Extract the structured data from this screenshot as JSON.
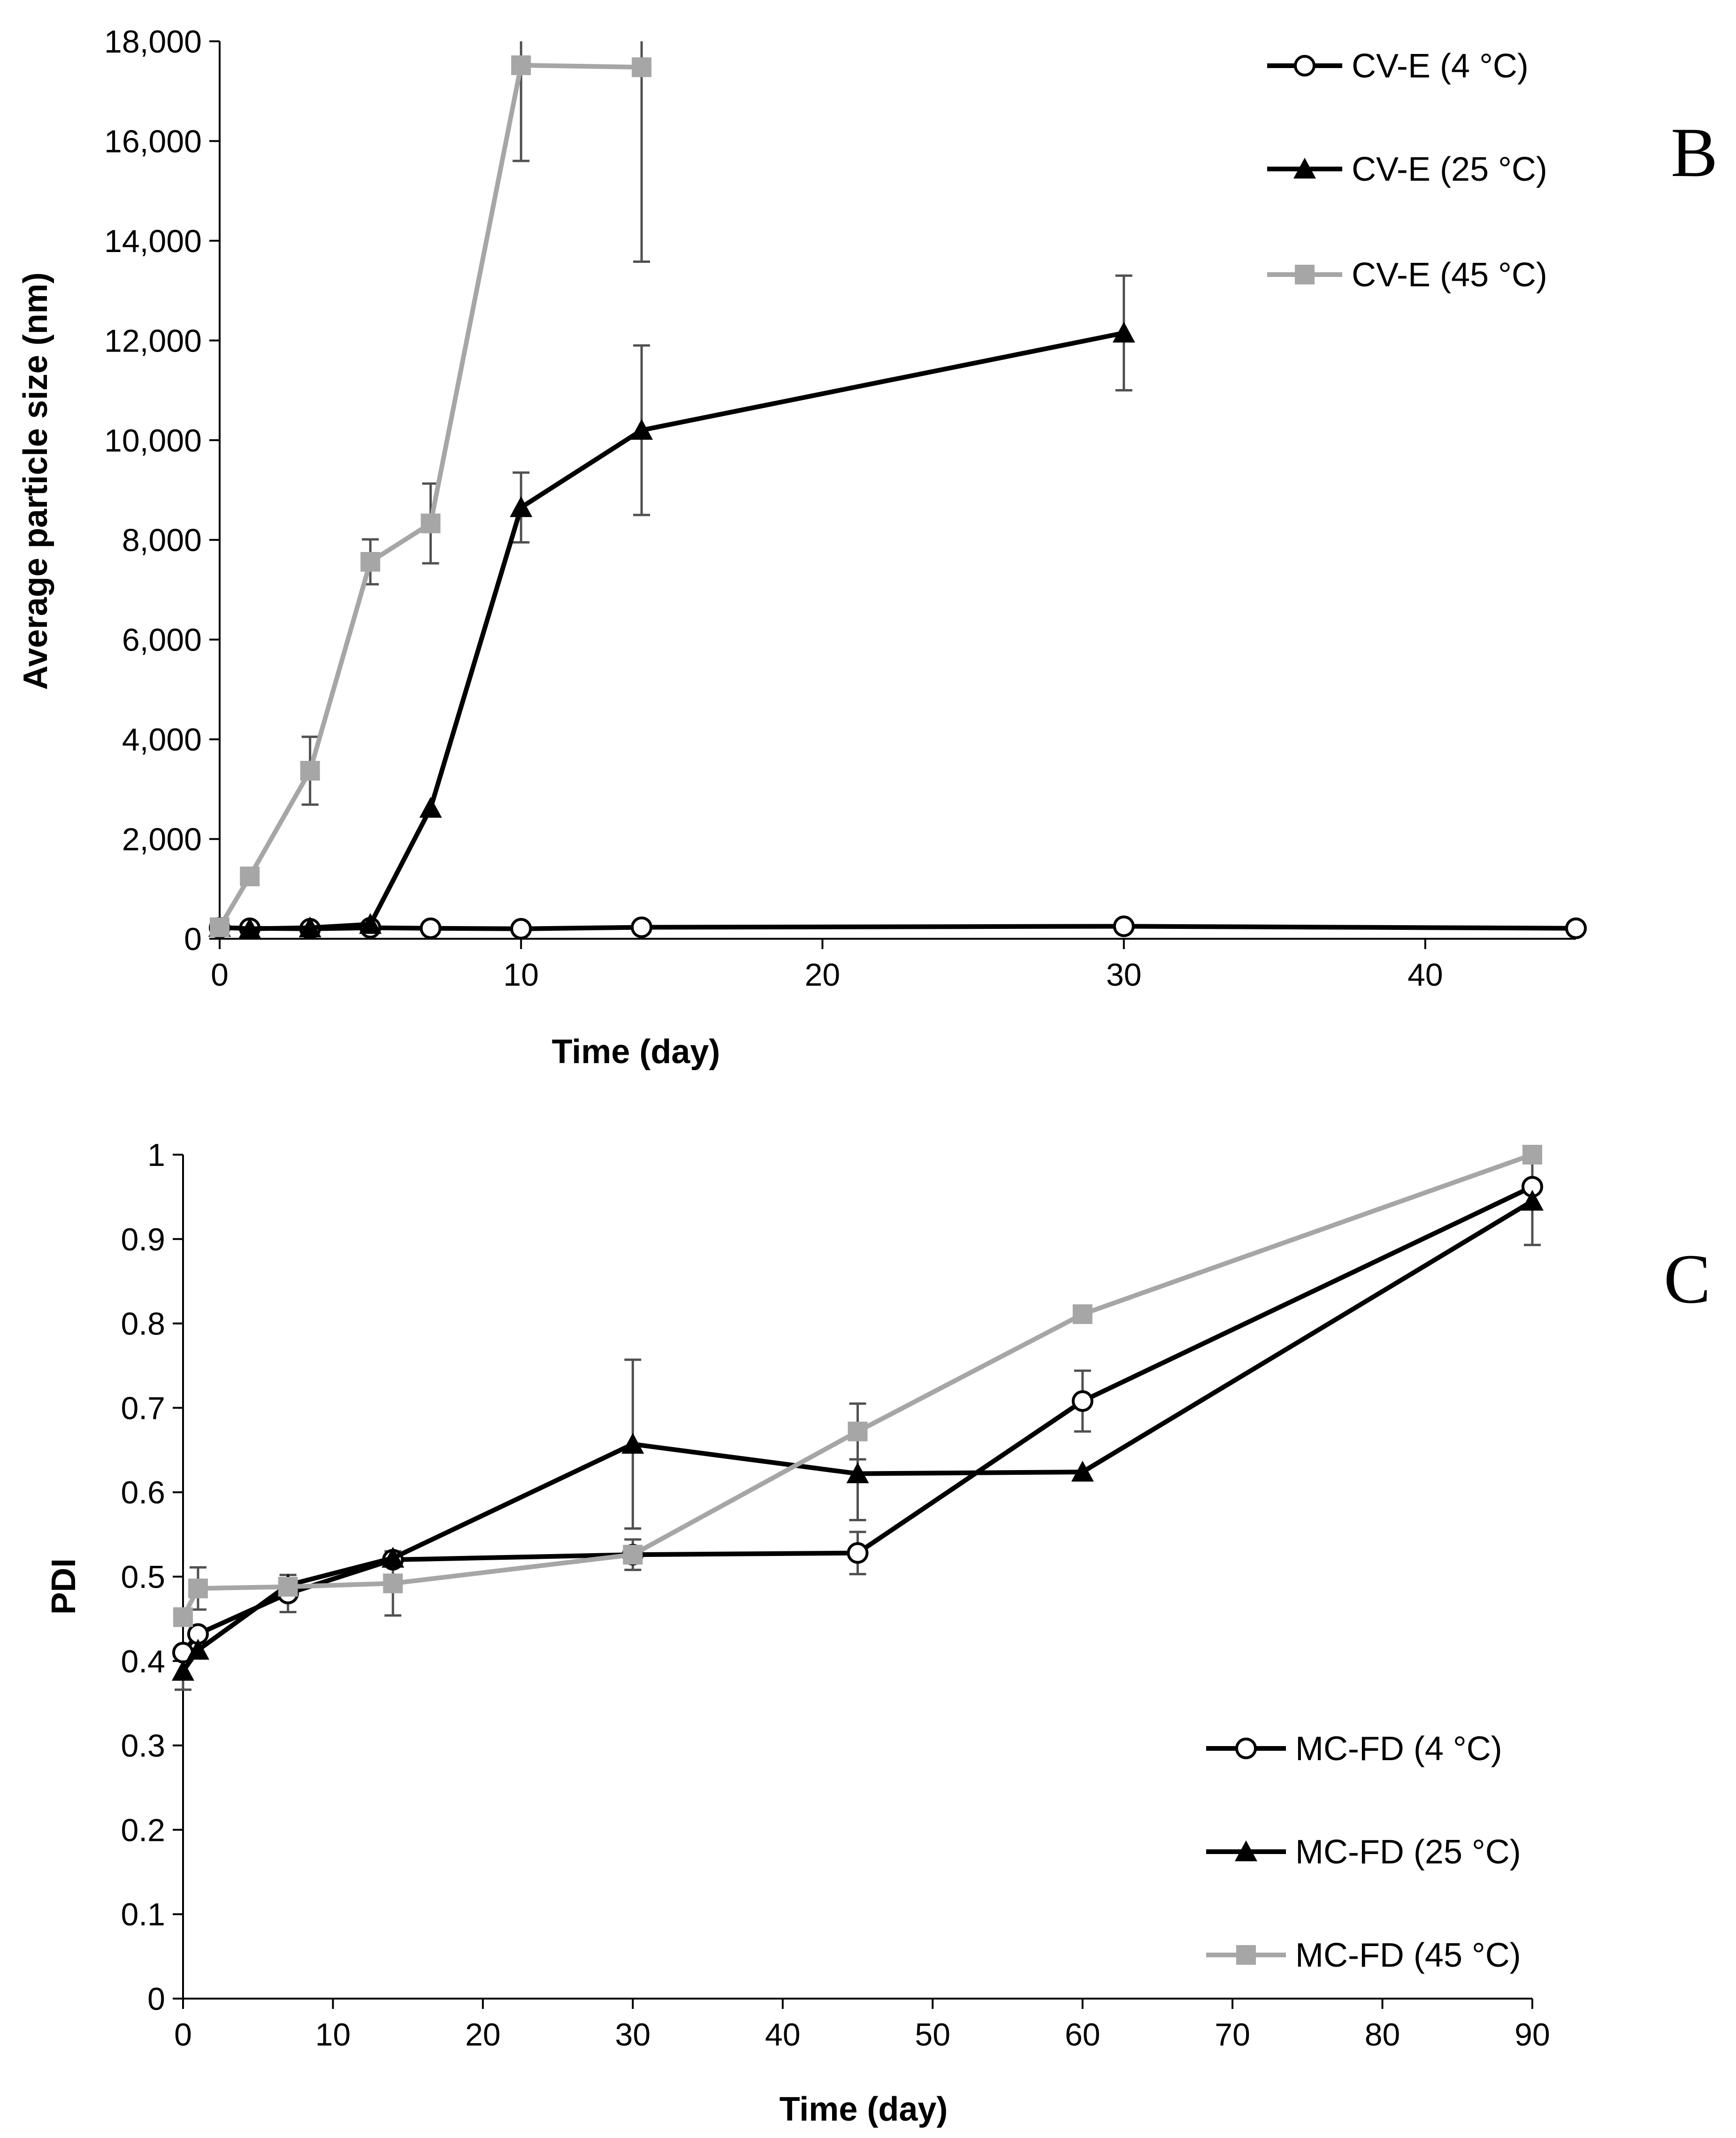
{
  "chart_data": [
    {
      "type": "line",
      "panel_label": "B",
      "title": "",
      "xlabel": "Time (day)",
      "ylabel": "Average particle size (nm)",
      "xlim": [
        0,
        45
      ],
      "ylim": [
        0,
        18000
      ],
      "xticks": [
        0,
        10,
        20,
        30,
        40
      ],
      "xtick_labels": [
        "0",
        "10",
        "20",
        "30",
        "40"
      ],
      "yticks": [
        0,
        2000,
        4000,
        6000,
        8000,
        10000,
        12000,
        14000,
        16000,
        18000
      ],
      "ytick_labels": [
        "0",
        "2,000",
        "4,000",
        "6,000",
        "8,000",
        "10,000",
        "12,000",
        "14,000",
        "16,000",
        "18,000"
      ],
      "grid": false,
      "legend_position": "top-right",
      "series": [
        {
          "name": "CV-E (4 °C)",
          "color": "#000000",
          "marker": "circle-open",
          "x": [
            0,
            1,
            3,
            5,
            7,
            10,
            14,
            30,
            45
          ],
          "y": [
            220,
            210,
            200,
            220,
            210,
            200,
            230,
            250,
            210
          ],
          "err": [
            0,
            0,
            0,
            0,
            0,
            0,
            0,
            0,
            0
          ]
        },
        {
          "name": "CV-E (25 °C)",
          "color": "#000000",
          "marker": "triangle",
          "x": [
            0,
            1,
            3,
            5,
            7,
            10,
            14,
            30
          ],
          "y": [
            230,
            200,
            220,
            290,
            2620,
            8650,
            10200,
            12150
          ],
          "err": [
            0,
            0,
            0,
            0,
            0,
            700,
            1700,
            1150
          ]
        },
        {
          "name": "CV-E (45 °C)",
          "color": "#a6a6a6",
          "marker": "square",
          "x": [
            0,
            1,
            3,
            5,
            7,
            10,
            14
          ],
          "y": [
            230,
            1250,
            3370,
            7560,
            8330,
            17520,
            17480
          ],
          "err": [
            0,
            0,
            680,
            450,
            800,
            1920,
            3900
          ]
        }
      ]
    },
    {
      "type": "line",
      "panel_label": "C",
      "title": "",
      "xlabel": "Time (day)",
      "ylabel": "PDI",
      "xlim": [
        0,
        90
      ],
      "ylim": [
        0,
        1
      ],
      "xticks": [
        0,
        10,
        20,
        30,
        40,
        50,
        60,
        70,
        80,
        90
      ],
      "xtick_labels": [
        "0",
        "10",
        "20",
        "30",
        "40",
        "50",
        "60",
        "70",
        "80",
        "90"
      ],
      "yticks": [
        0,
        0.1,
        0.2,
        0.3,
        0.4,
        0.5,
        0.6,
        0.7,
        0.8,
        0.9,
        1
      ],
      "ytick_labels": [
        "0",
        "0.1",
        "0.2",
        "0.3",
        "0.4",
        "0.5",
        "0.6",
        "0.7",
        "0.8",
        "0.9",
        "1"
      ],
      "grid": false,
      "legend_position": "bottom-right",
      "series": [
        {
          "name": "MC-FD (4 °C)",
          "color": "#000000",
          "marker": "circle-open",
          "x": [
            0,
            1,
            7,
            14,
            30,
            45,
            60,
            90
          ],
          "y": [
            0.41,
            0.432,
            0.48,
            0.52,
            0.526,
            0.528,
            0.708,
            0.962
          ],
          "err": [
            0,
            0,
            0.022,
            0,
            0,
            0.025,
            0.036,
            0
          ]
        },
        {
          "name": "MC-FD (25 °C)",
          "color": "#000000",
          "marker": "triangle",
          "x": [
            0,
            1,
            7,
            14,
            30,
            45,
            60,
            90
          ],
          "y": [
            0.388,
            0.413,
            0.49,
            0.522,
            0.657,
            0.622,
            0.624,
            0.945
          ],
          "err": [
            0.022,
            0,
            0,
            0,
            0.1,
            0.055,
            0,
            0.052
          ]
        },
        {
          "name": "MC-FD (45 °C)",
          "color": "#a6a6a6",
          "marker": "square",
          "x": [
            0,
            1,
            7,
            14,
            30,
            45,
            60,
            90
          ],
          "y": [
            0.452,
            0.486,
            0.488,
            0.492,
            0.526,
            0.672,
            0.811,
            1.0
          ],
          "err": [
            0,
            0.025,
            0,
            0.038,
            0.018,
            0.033,
            0,
            0
          ]
        }
      ]
    }
  ]
}
